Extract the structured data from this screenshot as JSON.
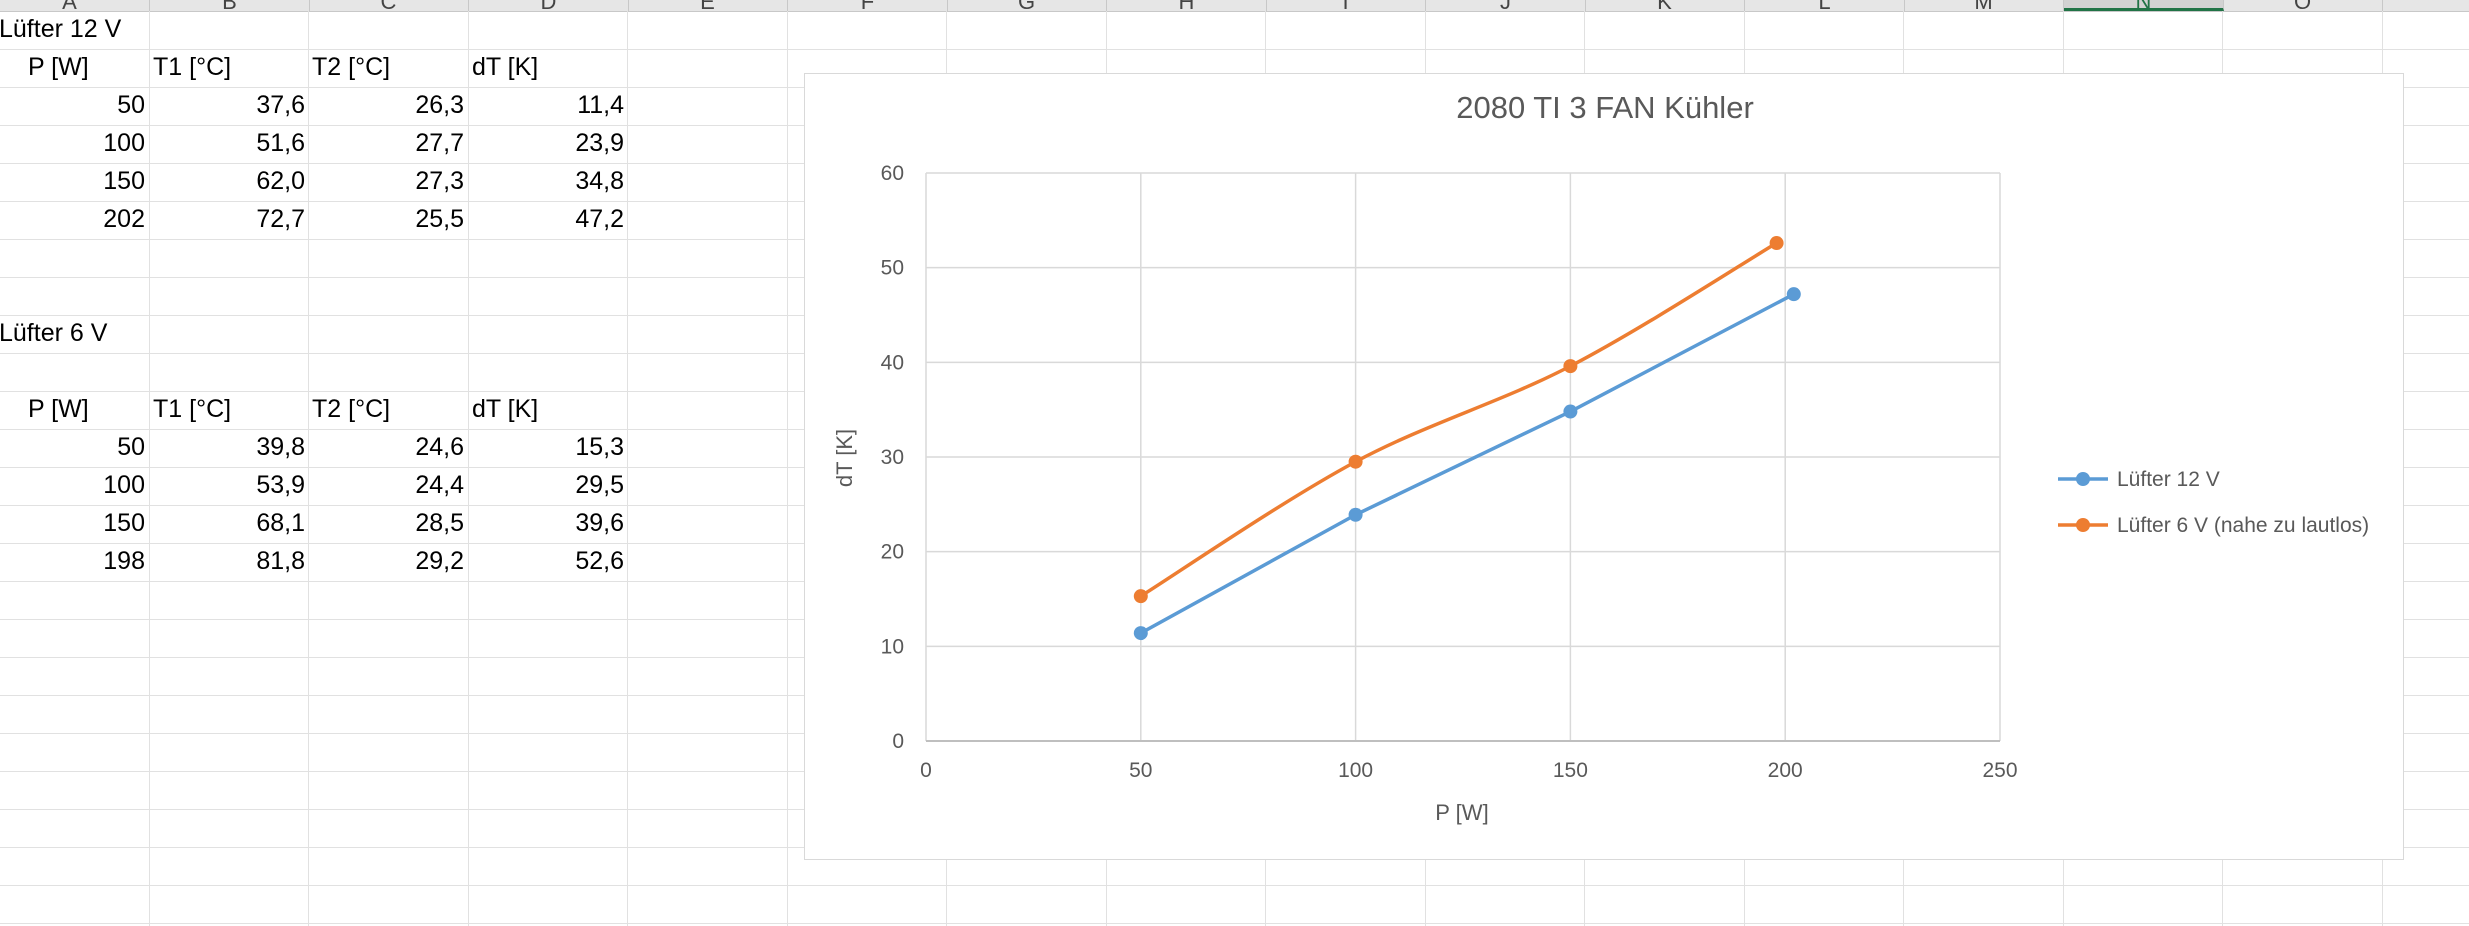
{
  "sheet": {
    "columns": [
      "A",
      "B",
      "C",
      "D",
      "E",
      "F",
      "G",
      "H",
      "I",
      "J",
      "K",
      "L",
      "M",
      "N",
      "O"
    ],
    "active_column": "N",
    "table1": {
      "title": "Lüfter 12 V",
      "headers": [
        "P [W]",
        "T1 [°C]",
        "T2 [°C]",
        "dT [K]"
      ],
      "rows": [
        [
          "50",
          "37,6",
          "26,3",
          "11,4"
        ],
        [
          "100",
          "51,6",
          "27,7",
          "23,9"
        ],
        [
          "150",
          "62,0",
          "27,3",
          "34,8"
        ],
        [
          "202",
          "72,7",
          "25,5",
          "47,2"
        ]
      ]
    },
    "table2": {
      "title": "Lüfter 6 V",
      "headers": [
        "P [W]",
        "T1 [°C]",
        "T2 [°C]",
        "dT [K]"
      ],
      "rows": [
        [
          "50",
          "39,8",
          "24,6",
          "15,3"
        ],
        [
          "100",
          "53,9",
          "24,4",
          "29,5"
        ],
        [
          "150",
          "68,1",
          "28,5",
          "39,6"
        ],
        [
          "198",
          "81,8",
          "29,2",
          "52,6"
        ]
      ]
    }
  },
  "chart_data": {
    "type": "scatter",
    "title": "2080 TI 3 FAN Kühler",
    "xlabel": "P [W]",
    "ylabel": "dT [K]",
    "xlim": [
      0,
      250
    ],
    "ylim": [
      0,
      60
    ],
    "x_ticks": [
      "0",
      "50",
      "100",
      "150",
      "200",
      "250"
    ],
    "y_ticks": [
      "0",
      "10",
      "20",
      "30",
      "40",
      "50",
      "60"
    ],
    "grid": true,
    "legend_position": "right",
    "series": [
      {
        "name": "Lüfter 12 V",
        "color": "#5b9bd5",
        "smooth": false,
        "x": [
          50,
          100,
          150,
          202
        ],
        "y": [
          11.4,
          23.9,
          34.8,
          47.2
        ]
      },
      {
        "name": "Lüfter 6 V (nahe zu lautlos)",
        "color": "#ed7d31",
        "smooth": true,
        "x": [
          50,
          100,
          150,
          198
        ],
        "y": [
          15.3,
          29.5,
          39.6,
          52.6
        ]
      }
    ]
  }
}
